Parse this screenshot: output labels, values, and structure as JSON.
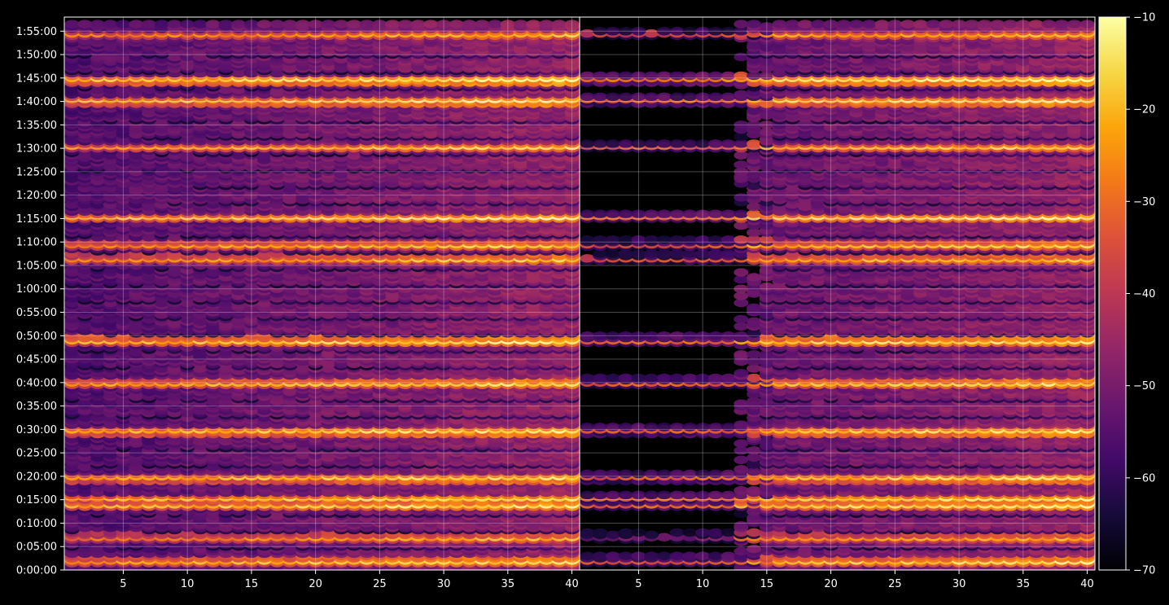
{
  "chart_data": {
    "type": "heatmap",
    "title": "",
    "xlabel": "",
    "ylabel": "",
    "grid": true,
    "panels": [
      {
        "name": "",
        "xlim": [
          1,
          40
        ],
        "ylim_seconds": [
          0,
          7080
        ],
        "xticks": [
          "5",
          "10",
          "15",
          "20",
          "25",
          "30",
          "35",
          "40"
        ],
        "xtick_values": [
          5,
          10,
          15,
          20,
          25,
          30,
          35,
          40
        ]
      },
      {
        "name": "",
        "xlim": [
          1,
          40
        ],
        "ylim_seconds": [
          0,
          7080
        ],
        "xticks": [
          "5",
          "10",
          "15",
          "20",
          "25",
          "30",
          "35",
          "40"
        ],
        "xtick_values": [
          5,
          10,
          15,
          20,
          25,
          30,
          35,
          40
        ]
      }
    ],
    "yticks": [
      "0:00:00",
      "0:05:00",
      "0:10:00",
      "0:15:00",
      "0:20:00",
      "0:25:00",
      "0:30:00",
      "0:35:00",
      "0:40:00",
      "0:45:00",
      "0:50:00",
      "0:55:00",
      "1:00:00",
      "1:05:00",
      "1:10:00",
      "1:15:00",
      "1:20:00",
      "1:25:00",
      "1:30:00",
      "1:35:00",
      "1:40:00",
      "1:45:00",
      "1:50:00",
      "1:55:00"
    ],
    "ytick_values": [
      0,
      300,
      600,
      900,
      1200,
      1500,
      1800,
      2100,
      2400,
      2700,
      3000,
      3300,
      3600,
      3900,
      4200,
      4500,
      4800,
      5100,
      5400,
      5700,
      6000,
      6300,
      6600,
      6900
    ],
    "colorbar": {
      "colormap": "inferno",
      "range": [
        -70,
        -10
      ],
      "ticks": [
        "−10",
        "−20",
        "−30",
        "−40",
        "−50",
        "−60",
        "−70"
      ],
      "tick_values": [
        -10,
        -20,
        -30,
        -40,
        -50,
        -60,
        -70
      ]
    },
    "value_range": [
      -70,
      -10
    ],
    "bright_rows_seconds": [
      {
        "t": 130,
        "v": -24
      },
      {
        "t": 430,
        "v": -30
      },
      {
        "t": 840,
        "v": -22
      },
      {
        "t": 920,
        "v": -23
      },
      {
        "t": 1190,
        "v": -24
      },
      {
        "t": 1790,
        "v": -23
      },
      {
        "t": 2410,
        "v": -24
      },
      {
        "t": 2950,
        "v": -22
      },
      {
        "t": 4000,
        "v": -27
      },
      {
        "t": 4180,
        "v": -26
      },
      {
        "t": 4530,
        "v": -22
      },
      {
        "t": 5430,
        "v": -26
      },
      {
        "t": 6020,
        "v": -23
      },
      {
        "t": 6290,
        "v": -20
      },
      {
        "t": 6860,
        "v": -28
      }
    ]
  }
}
